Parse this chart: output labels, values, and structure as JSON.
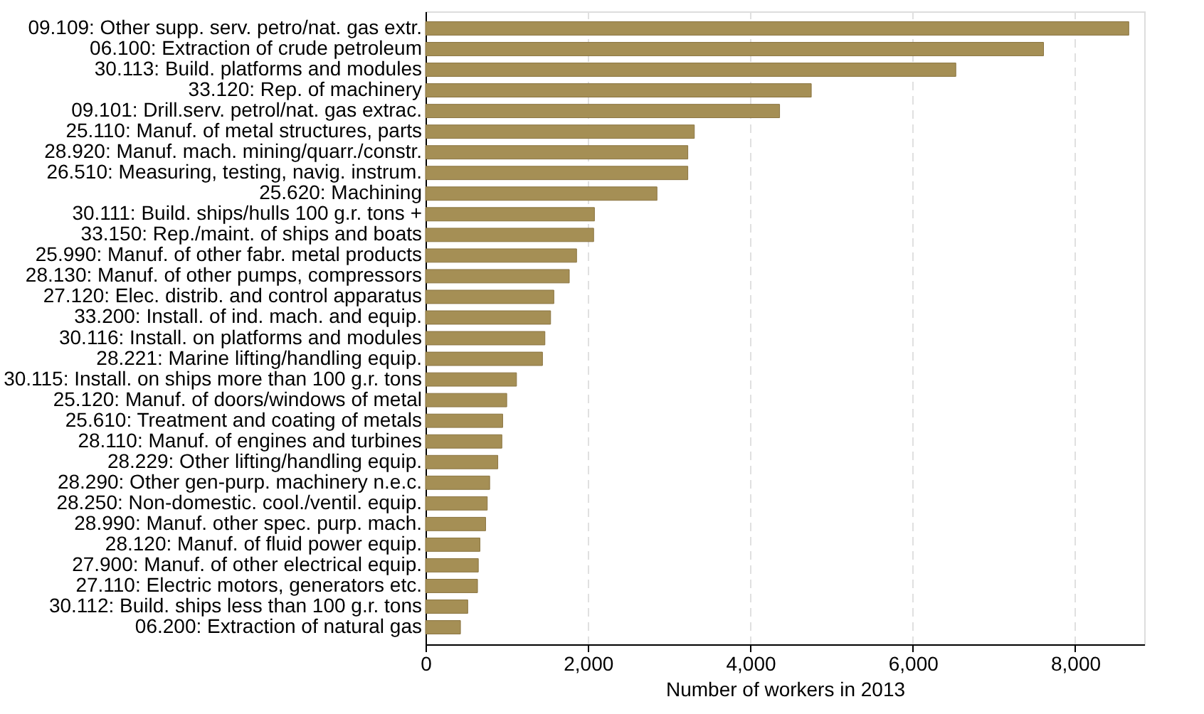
{
  "chart_data": {
    "type": "bar",
    "orientation": "horizontal",
    "xlabel": "Number of workers in 2013",
    "categories": [
      "09.109: Other supp. serv. petro/nat. gas extr.",
      "06.100: Extraction of crude petroleum",
      "30.113: Build. platforms and modules",
      "33.120: Rep. of machinery",
      "09.101: Drill.serv. petrol/nat. gas extrac.",
      "25.110: Manuf. of metal structures, parts",
      "28.920: Manuf. mach. mining/quarr./constr.",
      "26.510: Measuring, testing, navig. instrum.",
      "25.620: Machining",
      "30.111: Build. ships/hulls 100 g.r. tons +",
      "33.150: Rep./maint. of ships and boats",
      "25.990: Manuf. of other fabr. metal products",
      "28.130: Manuf. of other pumps, compressors",
      "27.120: Elec. distrib. and control apparatus",
      "33.200: Install. of ind. mach. and equip.",
      "30.116: Install. on platforms and modules",
      "28.221: Marine lifting/handling equip.",
      "30.115: Install. on ships more than 100 g.r. tons",
      "25.120: Manuf. of doors/windows of metal",
      "25.610: Treatment and coating of metals",
      "28.110: Manuf. of engines and turbines",
      "28.229: Other lifting/handling equip.",
      "28.290: Other gen-purp. machinery n.e.c.",
      "28.250: Non-domestic. cool./ventil. equip.",
      "28.990: Manuf. other spec. purp. mach.",
      "28.120: Manuf. of fluid power equip.",
      "27.900: Manuf. of other electrical equip.",
      "27.110: Electric motors, generators etc.",
      "30.112: Build. ships less than 100 g.r. tons",
      "06.200: Extraction of natural gas"
    ],
    "values": [
      8660,
      7610,
      6530,
      4750,
      4360,
      3310,
      3230,
      3230,
      2850,
      2080,
      2070,
      1860,
      1770,
      1580,
      1540,
      1470,
      1440,
      1120,
      1000,
      950,
      940,
      890,
      790,
      760,
      740,
      670,
      650,
      640,
      520,
      430
    ],
    "color": "#a58f55",
    "xlim": [
      0,
      8850
    ],
    "xticks": [
      {
        "value": 0,
        "label": "0"
      },
      {
        "value": 2000,
        "label": "2,000"
      },
      {
        "value": 4000,
        "label": "4,000"
      },
      {
        "value": 6000,
        "label": "6,000"
      },
      {
        "value": 8000,
        "label": "8,000"
      }
    ],
    "grid": "x"
  }
}
